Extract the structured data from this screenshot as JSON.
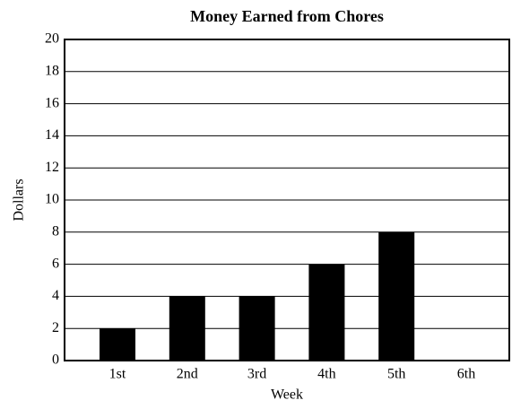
{
  "chart_data": {
    "type": "bar",
    "title": "Money Earned from Chores",
    "x_label": "Week",
    "y_label": "Dollars",
    "categories": [
      "1st",
      "2nd",
      "3rd",
      "4th",
      "5th",
      "6th"
    ],
    "values": [
      2,
      4,
      4,
      6,
      8,
      null
    ],
    "color": "#000000",
    "ylim": [
      0,
      20
    ],
    "yticks": [
      0,
      2,
      4,
      6,
      8,
      10,
      12,
      14,
      16,
      18,
      20
    ],
    "grid": true
  }
}
